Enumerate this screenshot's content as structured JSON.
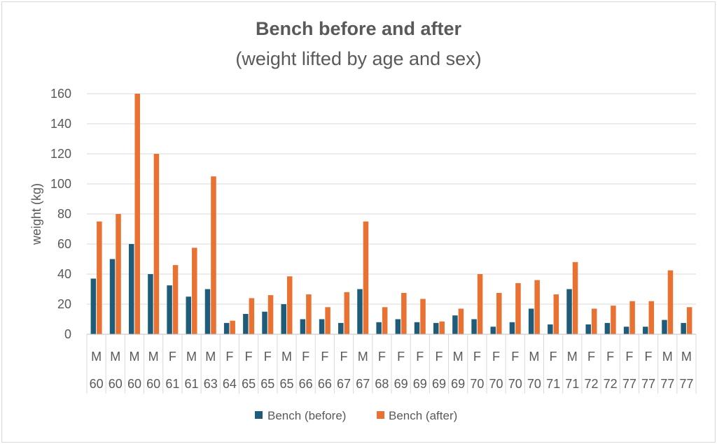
{
  "chart_data": {
    "type": "bar",
    "title": "Bench before and after",
    "subtitle": "(weight lifted by age and sex)",
    "ylabel": "weight (kg)",
    "xlabel": "",
    "ylim": [
      0,
      160
    ],
    "yticks": [
      0,
      20,
      40,
      60,
      80,
      100,
      120,
      140,
      160
    ],
    "grid": true,
    "legend_position": "bottom",
    "categories_level1": [
      "M",
      "M",
      "M",
      "M",
      "F",
      "M",
      "M",
      "F",
      "F",
      "F",
      "M",
      "F",
      "F",
      "F",
      "M",
      "F",
      "F",
      "F",
      "F",
      "M",
      "F",
      "F",
      "F",
      "M",
      "F",
      "M",
      "F",
      "F",
      "F",
      "F",
      "M",
      "M"
    ],
    "categories_level2": [
      "60",
      "60",
      "60",
      "60",
      "61",
      "61",
      "63",
      "64",
      "65",
      "65",
      "65",
      "66",
      "66",
      "67",
      "67",
      "68",
      "69",
      "69",
      "69",
      "69",
      "70",
      "70",
      "70",
      "70",
      "71",
      "71",
      "72",
      "72",
      "77",
      "77",
      "77",
      "77"
    ],
    "series": [
      {
        "name": "Bench (before)",
        "color": "#1f5c7a",
        "values": [
          37,
          50,
          60,
          40,
          32.5,
          25,
          30,
          7.5,
          13.5,
          15,
          20,
          10,
          10,
          7.5,
          30,
          8,
          10,
          8,
          7.5,
          12.5,
          10,
          5,
          8,
          17,
          6.5,
          30,
          6.5,
          7.5,
          5,
          5,
          9.5,
          7.5
        ]
      },
      {
        "name": "Bench (after)",
        "color": "#e97132",
        "values": [
          75,
          80,
          160,
          120,
          46,
          57.5,
          105,
          9,
          24,
          26,
          38.5,
          26.5,
          18,
          28,
          75,
          18,
          27.5,
          23.5,
          8.5,
          17,
          40,
          27.5,
          34,
          36,
          26.5,
          48,
          17,
          19,
          22,
          22,
          42.5,
          18
        ]
      }
    ]
  }
}
